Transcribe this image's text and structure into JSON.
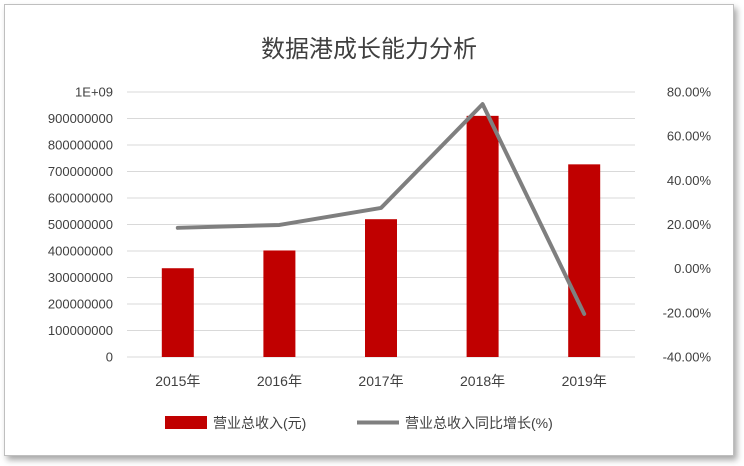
{
  "chart_data": {
    "type": "bar",
    "title": "数据港成长能力分析",
    "categories": [
      "2015年",
      "2016年",
      "2017年",
      "2018年",
      "2019年"
    ],
    "series": [
      {
        "name": "营业总收入(元)",
        "type": "bar",
        "axis": "left",
        "color": "#c00000",
        "values": [
          335000000,
          402000000,
          520000000,
          910000000,
          727000000
        ]
      },
      {
        "name": "营业总收入同比增长(%)",
        "type": "line",
        "axis": "right",
        "color": "#7f7f7f",
        "values": [
          18.5,
          19.8,
          27.5,
          74.5,
          -20.5
        ]
      }
    ],
    "y_left": {
      "lim": [
        0,
        1000000000
      ],
      "tick_labels": [
        "0",
        "100000000",
        "200000000",
        "300000000",
        "400000000",
        "500000000",
        "600000000",
        "700000000",
        "800000000",
        "900000000",
        "1E+09"
      ]
    },
    "y_right": {
      "lim": [
        -40,
        80
      ],
      "tick_labels": [
        "-40.00%",
        "-20.00%",
        "0.00%",
        "20.00%",
        "40.00%",
        "60.00%",
        "80.00%"
      ]
    },
    "grid": true,
    "legend_position": "bottom"
  }
}
